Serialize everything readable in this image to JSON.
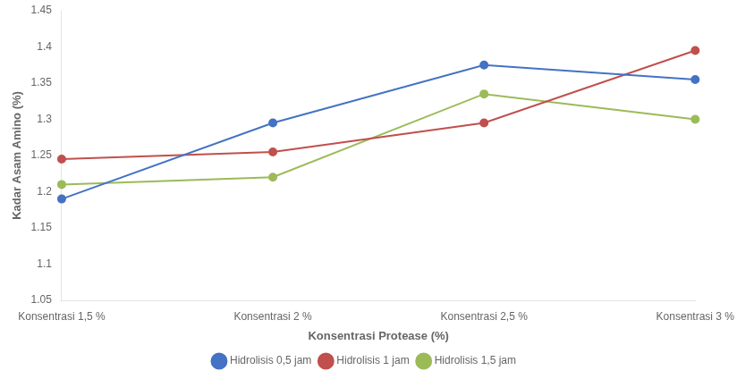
{
  "chart_data": {
    "type": "line",
    "categories": [
      "Konsentrasi 1,5 %",
      "Konsentrasi 2 %",
      "Konsentrasi 2,5 %",
      "Konsentrasi 3 %"
    ],
    "series": [
      {
        "name": "Hidrolisis 0,5 jam",
        "values": [
          1.19,
          1.295,
          1.375,
          1.355
        ],
        "color": "#4472C4",
        "marker": "circle"
      },
      {
        "name": "Hidrolisis 1 jam",
        "values": [
          1.245,
          1.255,
          1.295,
          1.395
        ],
        "color": "#C0504D",
        "marker": "circle"
      },
      {
        "name": "Hidrolisis 1,5 jam",
        "values": [
          1.21,
          1.22,
          1.335,
          1.3
        ],
        "color": "#9BBB59",
        "marker": "circle"
      }
    ],
    "xlabel": "Konsentrasi Protease (%)",
    "ylabel": "Kadar Asam Amino (%)",
    "ylim": [
      1.05,
      1.45
    ],
    "yticks": [
      1.05,
      1.1,
      1.15,
      1.2,
      1.25,
      1.3,
      1.35,
      1.4,
      1.45
    ],
    "grid": false,
    "legend": "bottom"
  }
}
